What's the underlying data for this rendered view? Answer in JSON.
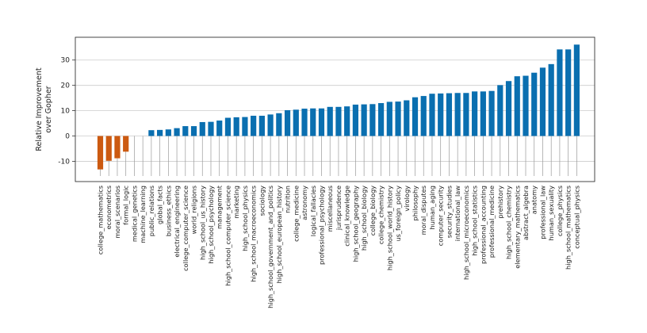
{
  "chart_data": {
    "type": "bar",
    "ylabel": "Relative Improvement\nover Gopher",
    "xlabel": "",
    "ylim": [
      -18,
      39
    ],
    "yticks": [
      -10,
      0,
      10,
      20,
      30
    ],
    "grid": "horizontal",
    "colors": {
      "negative": "#cc5a11",
      "positive": "#0a6fb0",
      "gridline": "#cccccc",
      "stem": "#9a9a9a"
    },
    "categories": [
      "college_mathematics",
      "econometrics",
      "moral_scenarios",
      "formal_logic",
      "medical_genetics",
      "machine_learning",
      "public_relations",
      "global_facts",
      "business_ethics",
      "electrical_engineering",
      "college_computer_science",
      "world_religions",
      "high_school_us_history",
      "high_school_psychology",
      "management",
      "high_school_computer_science",
      "marketing",
      "high_school_physics",
      "high_school_macroeconomics",
      "sociology",
      "high_school_government_and_politics",
      "high_school_european_history",
      "nutrition",
      "college_medicine",
      "astronomy",
      "logical_fallacies",
      "professional_psychology",
      "miscellaneous",
      "jurisprudence",
      "clinical_knowledge",
      "high_school_geography",
      "high_school_biology",
      "college_biology",
      "college_chemistry",
      "high_school_world_history",
      "us_foreign_policy",
      "virology",
      "philosophy",
      "moral_disputes",
      "human_aging",
      "computer_security",
      "security_studies",
      "international_law",
      "high_school_microeconomics",
      "high_school_statistics",
      "professional_accounting",
      "professional_medicine",
      "prehistory",
      "high_school_chemistry",
      "elementary_mathematics",
      "abstract_algebra",
      "anatomy",
      "professional_law",
      "human_sexuality",
      "college_physics",
      "high_school_mathematics",
      "conceptual_physics"
    ],
    "values": [
      -13.2,
      -9.8,
      -8.8,
      -6.2,
      0.0,
      0.0,
      2.3,
      2.4,
      2.6,
      3.1,
      3.9,
      3.9,
      5.5,
      5.6,
      6.1,
      7.2,
      7.4,
      7.5,
      8.0,
      8.0,
      8.5,
      9.0,
      10.2,
      10.4,
      10.8,
      10.9,
      10.9,
      11.5,
      11.5,
      11.7,
      12.4,
      12.5,
      12.6,
      13.0,
      13.5,
      13.6,
      14.1,
      15.3,
      15.8,
      16.7,
      16.8,
      16.9,
      17.0,
      17.0,
      17.6,
      17.6,
      17.8,
      20.1,
      21.7,
      23.6,
      23.8,
      25.0,
      27.0,
      28.4,
      34.2,
      34.2,
      36.1
    ]
  }
}
